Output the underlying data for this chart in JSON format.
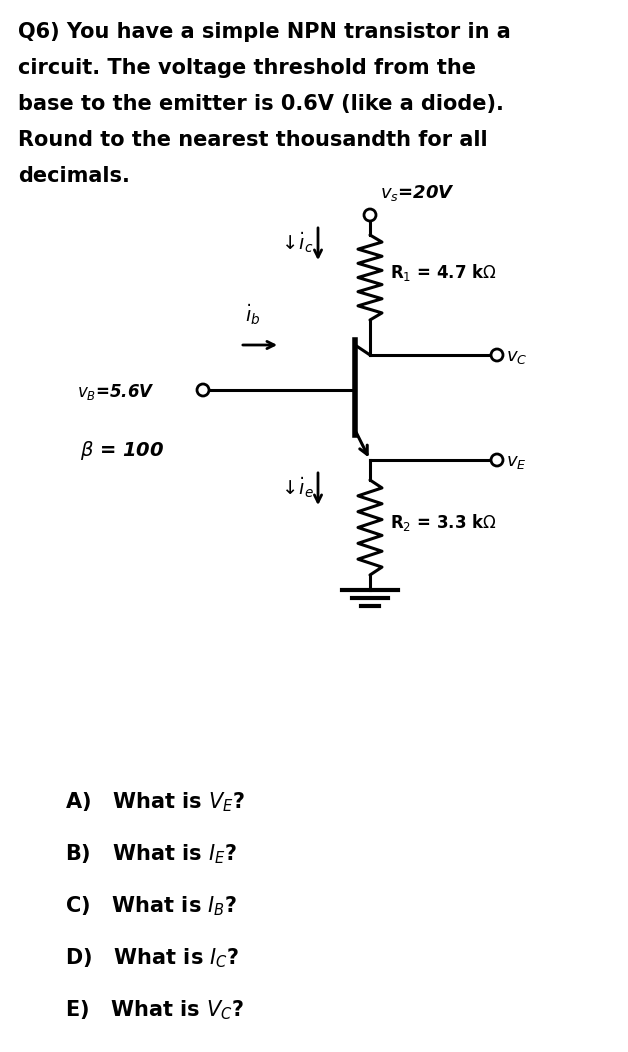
{
  "bg_color": "#ffffff",
  "text_color": "#000000",
  "title_lines": [
    "Q6) You have a simple NPN transistor in a",
    "circuit. The voltage threshold from the",
    "base to the emitter is 0.6V (like a diode).",
    "Round to the nearest thousandth for all",
    "decimals."
  ],
  "questions": [
    [
      "A)",
      "What is V",
      "E",
      "?"
    ],
    [
      "B)",
      "What is I",
      "E",
      "?"
    ],
    [
      "C)",
      "What is I",
      "B",
      "?"
    ],
    [
      "D)",
      "What is I",
      "C",
      "?"
    ],
    [
      "E)",
      "What is V",
      "C",
      "?"
    ]
  ],
  "vs_label": "v$_s$=20V",
  "r1_label": "R$_1$ = 4.7 kΩ",
  "r2_label": "R$_2$ = 3.3 kΩ",
  "vc_label": "v$_C$",
  "ve_label": "v$_E$",
  "vb_label": "v$_B$=5.6V",
  "beta_label": "β = 100"
}
